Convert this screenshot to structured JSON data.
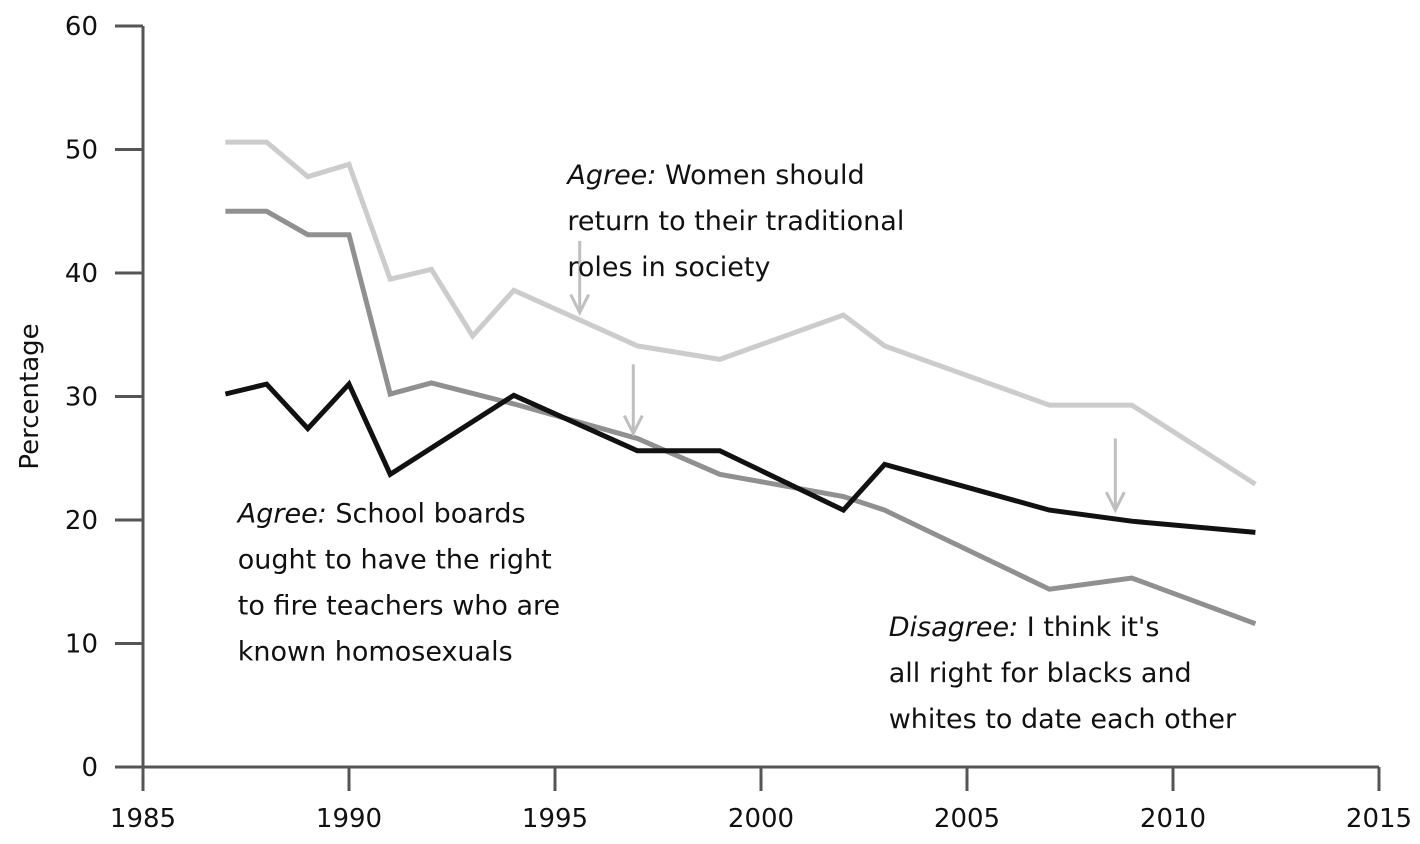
{
  "chart_data": {
    "type": "line",
    "title": "",
    "xlabel": "",
    "ylabel": "Percentage",
    "xlim": [
      1985,
      2015
    ],
    "ylim": [
      0,
      60
    ],
    "x_ticks": [
      1985,
      1990,
      1995,
      2000,
      2005,
      2010,
      2015
    ],
    "y_ticks": [
      0,
      10,
      20,
      30,
      40,
      50,
      60
    ],
    "grid": false,
    "legend": "none",
    "series": [
      {
        "id": "women-traditional-roles",
        "color": "#cccccc",
        "points": [
          {
            "x": 1987,
            "y": 50.6
          },
          {
            "x": 1988,
            "y": 50.6
          },
          {
            "x": 1989,
            "y": 47.8
          },
          {
            "x": 1990,
            "y": 48.8
          },
          {
            "x": 1991,
            "y": 39.5
          },
          {
            "x": 1992,
            "y": 40.3
          },
          {
            "x": 1993,
            "y": 34.9
          },
          {
            "x": 1994,
            "y": 38.6
          },
          {
            "x": 1997,
            "y": 34.1
          },
          {
            "x": 1999,
            "y": 33.0
          },
          {
            "x": 2002,
            "y": 36.6
          },
          {
            "x": 2003,
            "y": 34.1
          },
          {
            "x": 2007,
            "y": 29.3
          },
          {
            "x": 2009,
            "y": 29.3
          },
          {
            "x": 2012,
            "y": 22.9
          }
        ]
      },
      {
        "id": "school-boards-fire-teachers",
        "color": "#909090",
        "points": [
          {
            "x": 1987,
            "y": 45.0
          },
          {
            "x": 1988,
            "y": 45.0
          },
          {
            "x": 1989,
            "y": 43.1
          },
          {
            "x": 1990,
            "y": 43.1
          },
          {
            "x": 1991,
            "y": 30.2
          },
          {
            "x": 1992,
            "y": 31.1
          },
          {
            "x": 1994,
            "y": 29.4
          },
          {
            "x": 1997,
            "y": 26.6
          },
          {
            "x": 1999,
            "y": 23.7
          },
          {
            "x": 2002,
            "y": 21.9
          },
          {
            "x": 2003,
            "y": 20.8
          },
          {
            "x": 2007,
            "y": 14.4
          },
          {
            "x": 2009,
            "y": 15.3
          },
          {
            "x": 2012,
            "y": 11.6
          }
        ]
      },
      {
        "id": "interracial-dating",
        "color": "#111111",
        "points": [
          {
            "x": 1987,
            "y": 30.2
          },
          {
            "x": 1988,
            "y": 31.0
          },
          {
            "x": 1989,
            "y": 27.4
          },
          {
            "x": 1990,
            "y": 31.0
          },
          {
            "x": 1991,
            "y": 23.7
          },
          {
            "x": 1994,
            "y": 30.1
          },
          {
            "x": 1997,
            "y": 25.6
          },
          {
            "x": 1999,
            "y": 25.6
          },
          {
            "x": 2002,
            "y": 20.8
          },
          {
            "x": 2003,
            "y": 24.5
          },
          {
            "x": 2007,
            "y": 20.8
          },
          {
            "x": 2009,
            "y": 19.9
          },
          {
            "x": 2012,
            "y": 19.0
          }
        ]
      }
    ],
    "annotations": [
      {
        "id": "women",
        "lines": [
          {
            "emph": "Agree:",
            "text": " Women should"
          },
          {
            "emph": "",
            "text": "return to their traditional"
          },
          {
            "emph": "",
            "text": "roles in society"
          }
        ],
        "anchor": {
          "x": 1995.3,
          "y": 47.2
        }
      },
      {
        "id": "school",
        "lines": [
          {
            "emph": "Agree:",
            "text": " School boards"
          },
          {
            "emph": "",
            "text": "ought to have the right"
          },
          {
            "emph": "",
            "text": "to fire teachers who are"
          },
          {
            "emph": "",
            "text": "known homosexuals"
          }
        ],
        "anchor": {
          "x": 1987.3,
          "y": 19.8
        }
      },
      {
        "id": "dating",
        "lines": [
          {
            "emph": "Disagree:",
            "text": " I think it's"
          },
          {
            "emph": "",
            "text": "all right for blacks and"
          },
          {
            "emph": "",
            "text": "whites to date each other"
          }
        ],
        "anchor": {
          "x": 2003.1,
          "y": 10.6
        }
      }
    ],
    "arrows": [
      {
        "x": 1995.6,
        "y_start": 42.6,
        "y_end": 36.8
      },
      {
        "x": 1996.9,
        "y_start": 32.6,
        "y_end": 27.0
      },
      {
        "x": 2008.6,
        "y_start": 26.6,
        "y_end": 20.8
      }
    ]
  }
}
